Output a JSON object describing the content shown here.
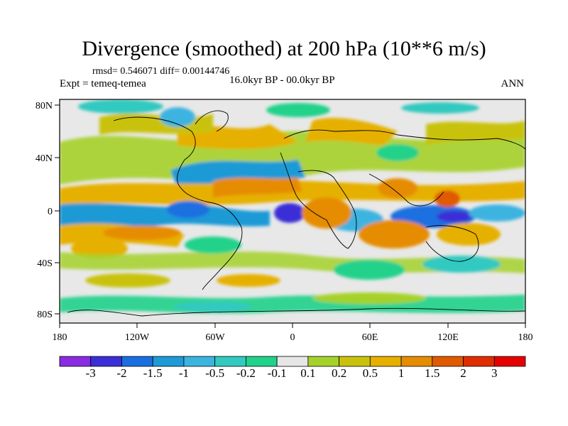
{
  "title": "Divergence (smoothed) at 200 hPa (10**6 m/s)",
  "stats": "rmsd= 0.546071 diff= 0.00144746",
  "expt": "Expt = temeq-temea",
  "period": "16.0kyr BP - 00.0kyr BP",
  "season": "ANN",
  "axes": {
    "lon_ticks": [
      "180",
      "120W",
      "60W",
      "0",
      "60E",
      "120E",
      "180"
    ],
    "lat_ticks": [
      "80N",
      "40N",
      "0",
      "40S",
      "80S"
    ]
  },
  "colorbar": {
    "labels": [
      "-3",
      "-2",
      "-1.5",
      "-1",
      "-0.5",
      "-0.2",
      "-0.1",
      "0.1",
      "0.2",
      "0.5",
      "1",
      "1.5",
      "2",
      "3"
    ],
    "colors": [
      "#8a2be2",
      "#3a2fd6",
      "#1a6fe0",
      "#1e9ad6",
      "#3cb4e0",
      "#33c9c0",
      "#20d28a",
      "#e6e6e6",
      "#a5d22a",
      "#c9c20c",
      "#e6b000",
      "#e68c00",
      "#e05a00",
      "#e02d00",
      "#e60000"
    ]
  }
}
